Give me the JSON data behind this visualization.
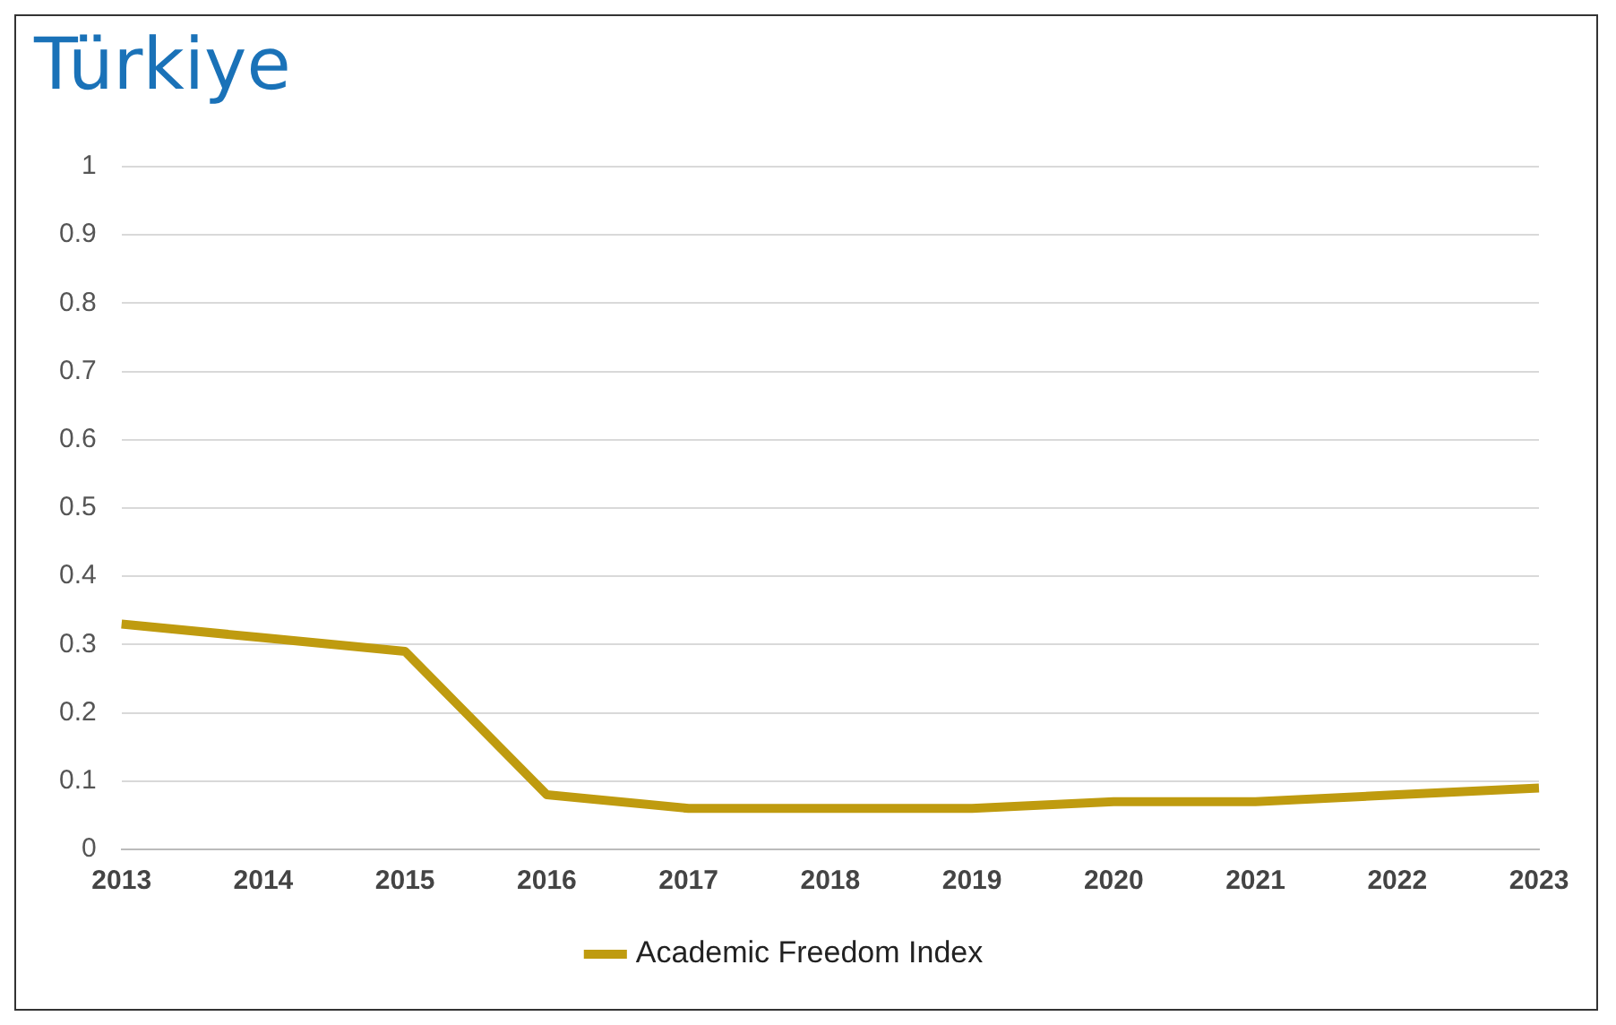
{
  "chart_data": {
    "type": "line",
    "title": "Türkiye",
    "categories": [
      "2013",
      "2014",
      "2015",
      "2016",
      "2017",
      "2018",
      "2019",
      "2020",
      "2021",
      "2022",
      "2023"
    ],
    "series": [
      {
        "name": "Academic Freedom Index",
        "color": "#bf9b0f",
        "values": [
          0.33,
          0.31,
          0.29,
          0.08,
          0.06,
          0.06,
          0.06,
          0.07,
          0.07,
          0.08,
          0.09
        ]
      }
    ],
    "ylim": [
      0,
      1
    ],
    "yticks": [
      0,
      0.1,
      0.2,
      0.3,
      0.4,
      0.5,
      0.6,
      0.7,
      0.8,
      0.9,
      1
    ],
    "grid": "y",
    "legend": "bottom"
  }
}
